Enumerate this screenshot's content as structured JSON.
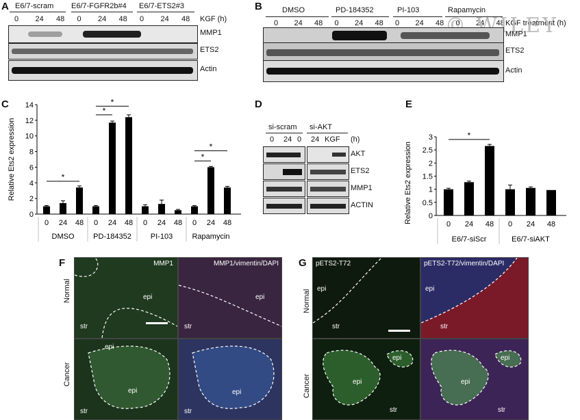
{
  "panels": {
    "A": "A",
    "B": "B",
    "C": "C",
    "D": "D",
    "E": "E",
    "F": "F",
    "G": "G"
  },
  "watermark": "© WILEY",
  "panelA": {
    "groups": [
      "E6/7-scram",
      "E6/7-FGFR2b#4",
      "E6/7-ETS2#3"
    ],
    "lanes": [
      "0",
      "24",
      "48",
      "0",
      "24",
      "48",
      "0",
      "24",
      "48"
    ],
    "lane_title": "KGF (h)",
    "rows": [
      "MMP1",
      "ETS2",
      "Actin"
    ]
  },
  "panelB": {
    "groups": [
      "DMSO",
      "PD-184352",
      "PI-103",
      "Rapamycin"
    ],
    "lanes": [
      "0",
      "24",
      "48",
      "0",
      "24",
      "48",
      "0",
      "24",
      "48",
      "0",
      "24",
      "48"
    ],
    "lane_title": "KGF treatment (h)",
    "rows": [
      "MMP1",
      "ETS2",
      "Actin"
    ]
  },
  "panelD": {
    "groups": [
      "si-scram",
      "si-AKT"
    ],
    "lanes": [
      "0",
      "24",
      "0",
      "24",
      "KGF"
    ],
    "lane_title": "(h)",
    "rows": [
      "AKT",
      "ETS2",
      "MMP1",
      "ACTIN"
    ]
  },
  "panelF": {
    "labels": [
      "MMP1",
      "MMP1/vimentin/DAPI"
    ],
    "rows": [
      "Normal",
      "Cancer"
    ],
    "epi": "epi",
    "str": "str"
  },
  "panelG": {
    "labels": [
      "pETS2-T72",
      "pETS2-T72/vimentin/DAPI"
    ],
    "rows": [
      "Normal",
      "Cancer"
    ],
    "epi": "epi",
    "str": "str"
  },
  "chart_data": [
    {
      "type": "bar",
      "ylabel": "Relative Ets2 expression",
      "ylim": [
        0,
        14
      ],
      "yticks": [
        0,
        2,
        4,
        6,
        8,
        10,
        12,
        14
      ],
      "categories": [
        "0",
        "24",
        "48",
        "0",
        "24",
        "48",
        "0",
        "24",
        "48",
        "0",
        "24",
        "48"
      ],
      "groups": [
        "DMSO",
        "PD-184352",
        "PI-103",
        "Rapamycin"
      ],
      "values": [
        1.0,
        1.4,
        3.4,
        1.0,
        11.7,
        12.4,
        1.0,
        1.3,
        0.5,
        1.0,
        6.0,
        3.4
      ],
      "errors": [
        0.1,
        0.3,
        0.2,
        0.1,
        0.2,
        0.3,
        0.2,
        0.5,
        0.1,
        0.1,
        0.1,
        0.15
      ],
      "significance": [
        "*",
        "*",
        "*",
        "*",
        "*"
      ]
    },
    {
      "type": "bar",
      "ylabel": "Relative Ets2 expression",
      "ylim": [
        0,
        3
      ],
      "yticks": [
        "0",
        "0.5",
        "1",
        "1.5",
        "2",
        "2.5",
        "3"
      ],
      "categories": [
        "0",
        "24",
        "48",
        "0",
        "24",
        "48"
      ],
      "groups": [
        "E6/7-siScr",
        "E6/7-siAKT"
      ],
      "values": [
        1.0,
        1.27,
        2.65,
        1.0,
        1.05,
        0.97
      ],
      "errors": [
        0.04,
        0.04,
        0.06,
        0.16,
        0.04,
        0.0
      ],
      "significance": [
        "*"
      ]
    }
  ]
}
